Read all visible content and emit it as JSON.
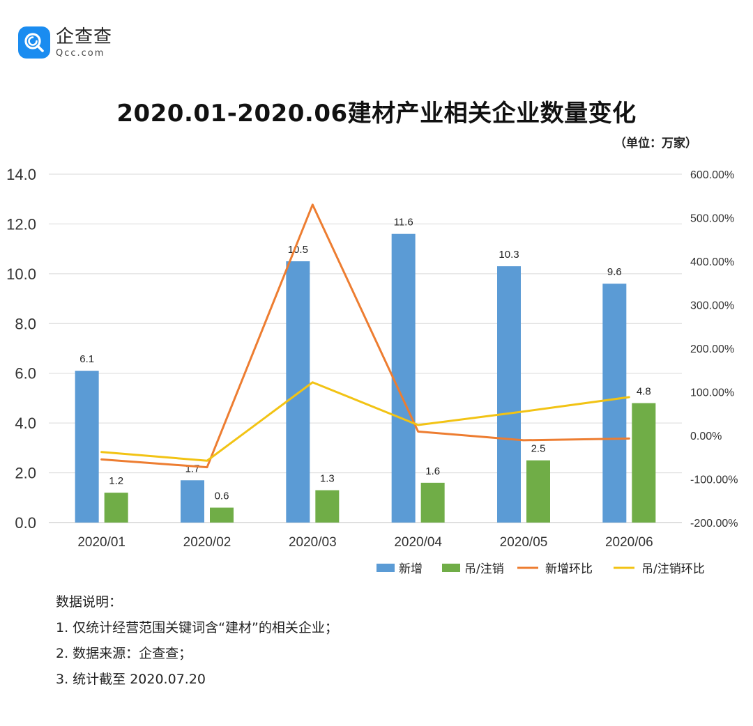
{
  "logo": {
    "name": "企查查",
    "domain": "Qcc.com",
    "icon": "qcc-magnifier-icon",
    "color": "#1a8cf0"
  },
  "title": "2020.01-2020.06建材产业相关企业数量变化",
  "unit": "（单位：万家）",
  "chart_data": {
    "type": "bar",
    "categories": [
      "2020/01",
      "2020/02",
      "2020/03",
      "2020/04",
      "2020/05",
      "2020/06"
    ],
    "series": [
      {
        "name": "新增",
        "type": "bar",
        "axis": "left",
        "color": "#5b9bd5",
        "values": [
          6.1,
          1.7,
          10.5,
          11.6,
          10.3,
          9.6
        ],
        "labels": [
          "6.1",
          "1.7",
          "10.5",
          "11.6",
          "10.3",
          "9.6"
        ]
      },
      {
        "name": "吊/注销",
        "type": "bar",
        "axis": "left",
        "color": "#70ad47",
        "values": [
          1.2,
          0.6,
          1.3,
          1.6,
          2.5,
          4.8
        ],
        "labels": [
          "1.2",
          "0.6",
          "1.3",
          "1.6",
          "2.5",
          "4.8"
        ]
      },
      {
        "name": "新增环比",
        "type": "line",
        "axis": "right",
        "color": "#ed7d31",
        "values": [
          -55,
          -73,
          530,
          9,
          -11,
          -7
        ]
      },
      {
        "name": "吊/注销环比",
        "type": "line",
        "axis": "right",
        "color": "#f2c314",
        "values": [
          -38,
          -58,
          122,
          24,
          55,
          88
        ]
      }
    ],
    "y_left": {
      "range": [
        0,
        14
      ],
      "ticks": [
        "0.0",
        "2.0",
        "4.0",
        "6.0",
        "8.0",
        "10.0",
        "12.0",
        "14.0"
      ]
    },
    "y_right": {
      "range": [
        -200,
        600
      ],
      "ticks": [
        "-200.00%",
        "-100.00%",
        "0.00%",
        "100.00%",
        "200.00%",
        "300.00%",
        "400.00%",
        "500.00%",
        "600.00%"
      ]
    },
    "grid": true,
    "legend": "bottom-right"
  },
  "notes": {
    "heading": "数据说明：",
    "items": [
      "1. 仅统计经营范围关键词含“建材”的相关企业；",
      "2. 数据来源：企查查；",
      "3. 统计截至 2020.07.20"
    ]
  }
}
